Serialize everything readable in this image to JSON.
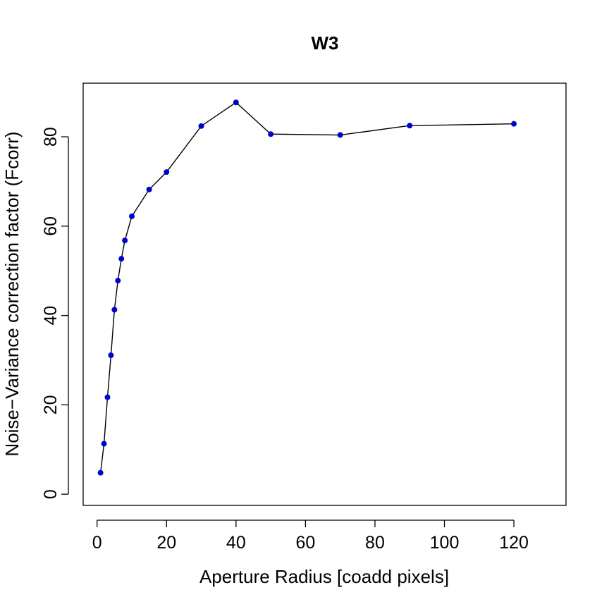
{
  "chart_data": {
    "type": "line",
    "title": "W3",
    "xlabel": "Aperture Radius [coadd pixels]",
    "ylabel": "Noise−Variance correction factor (Fcorr)",
    "xlim": [
      -4,
      135
    ],
    "ylim": [
      -2.5,
      92
    ],
    "xticks": [
      0,
      20,
      40,
      60,
      80,
      100,
      120
    ],
    "yticks": [
      0,
      20,
      40,
      60,
      80
    ],
    "grid": false,
    "legend": "none",
    "series": [
      {
        "x": [
          1,
          2,
          3,
          4,
          5,
          6,
          7,
          8,
          10,
          15,
          20,
          30,
          40,
          50,
          70,
          90,
          120
        ],
        "y": [
          4.8,
          11.3,
          21.7,
          31.1,
          41.3,
          47.8,
          52.7,
          56.8,
          62.2,
          68.2,
          72.1,
          82.4,
          87.7,
          80.6,
          80.4,
          82.5,
          82.9
        ]
      }
    ],
    "colors": {
      "point": "#0000cc",
      "line": "#000000",
      "axis": "#000000"
    }
  }
}
